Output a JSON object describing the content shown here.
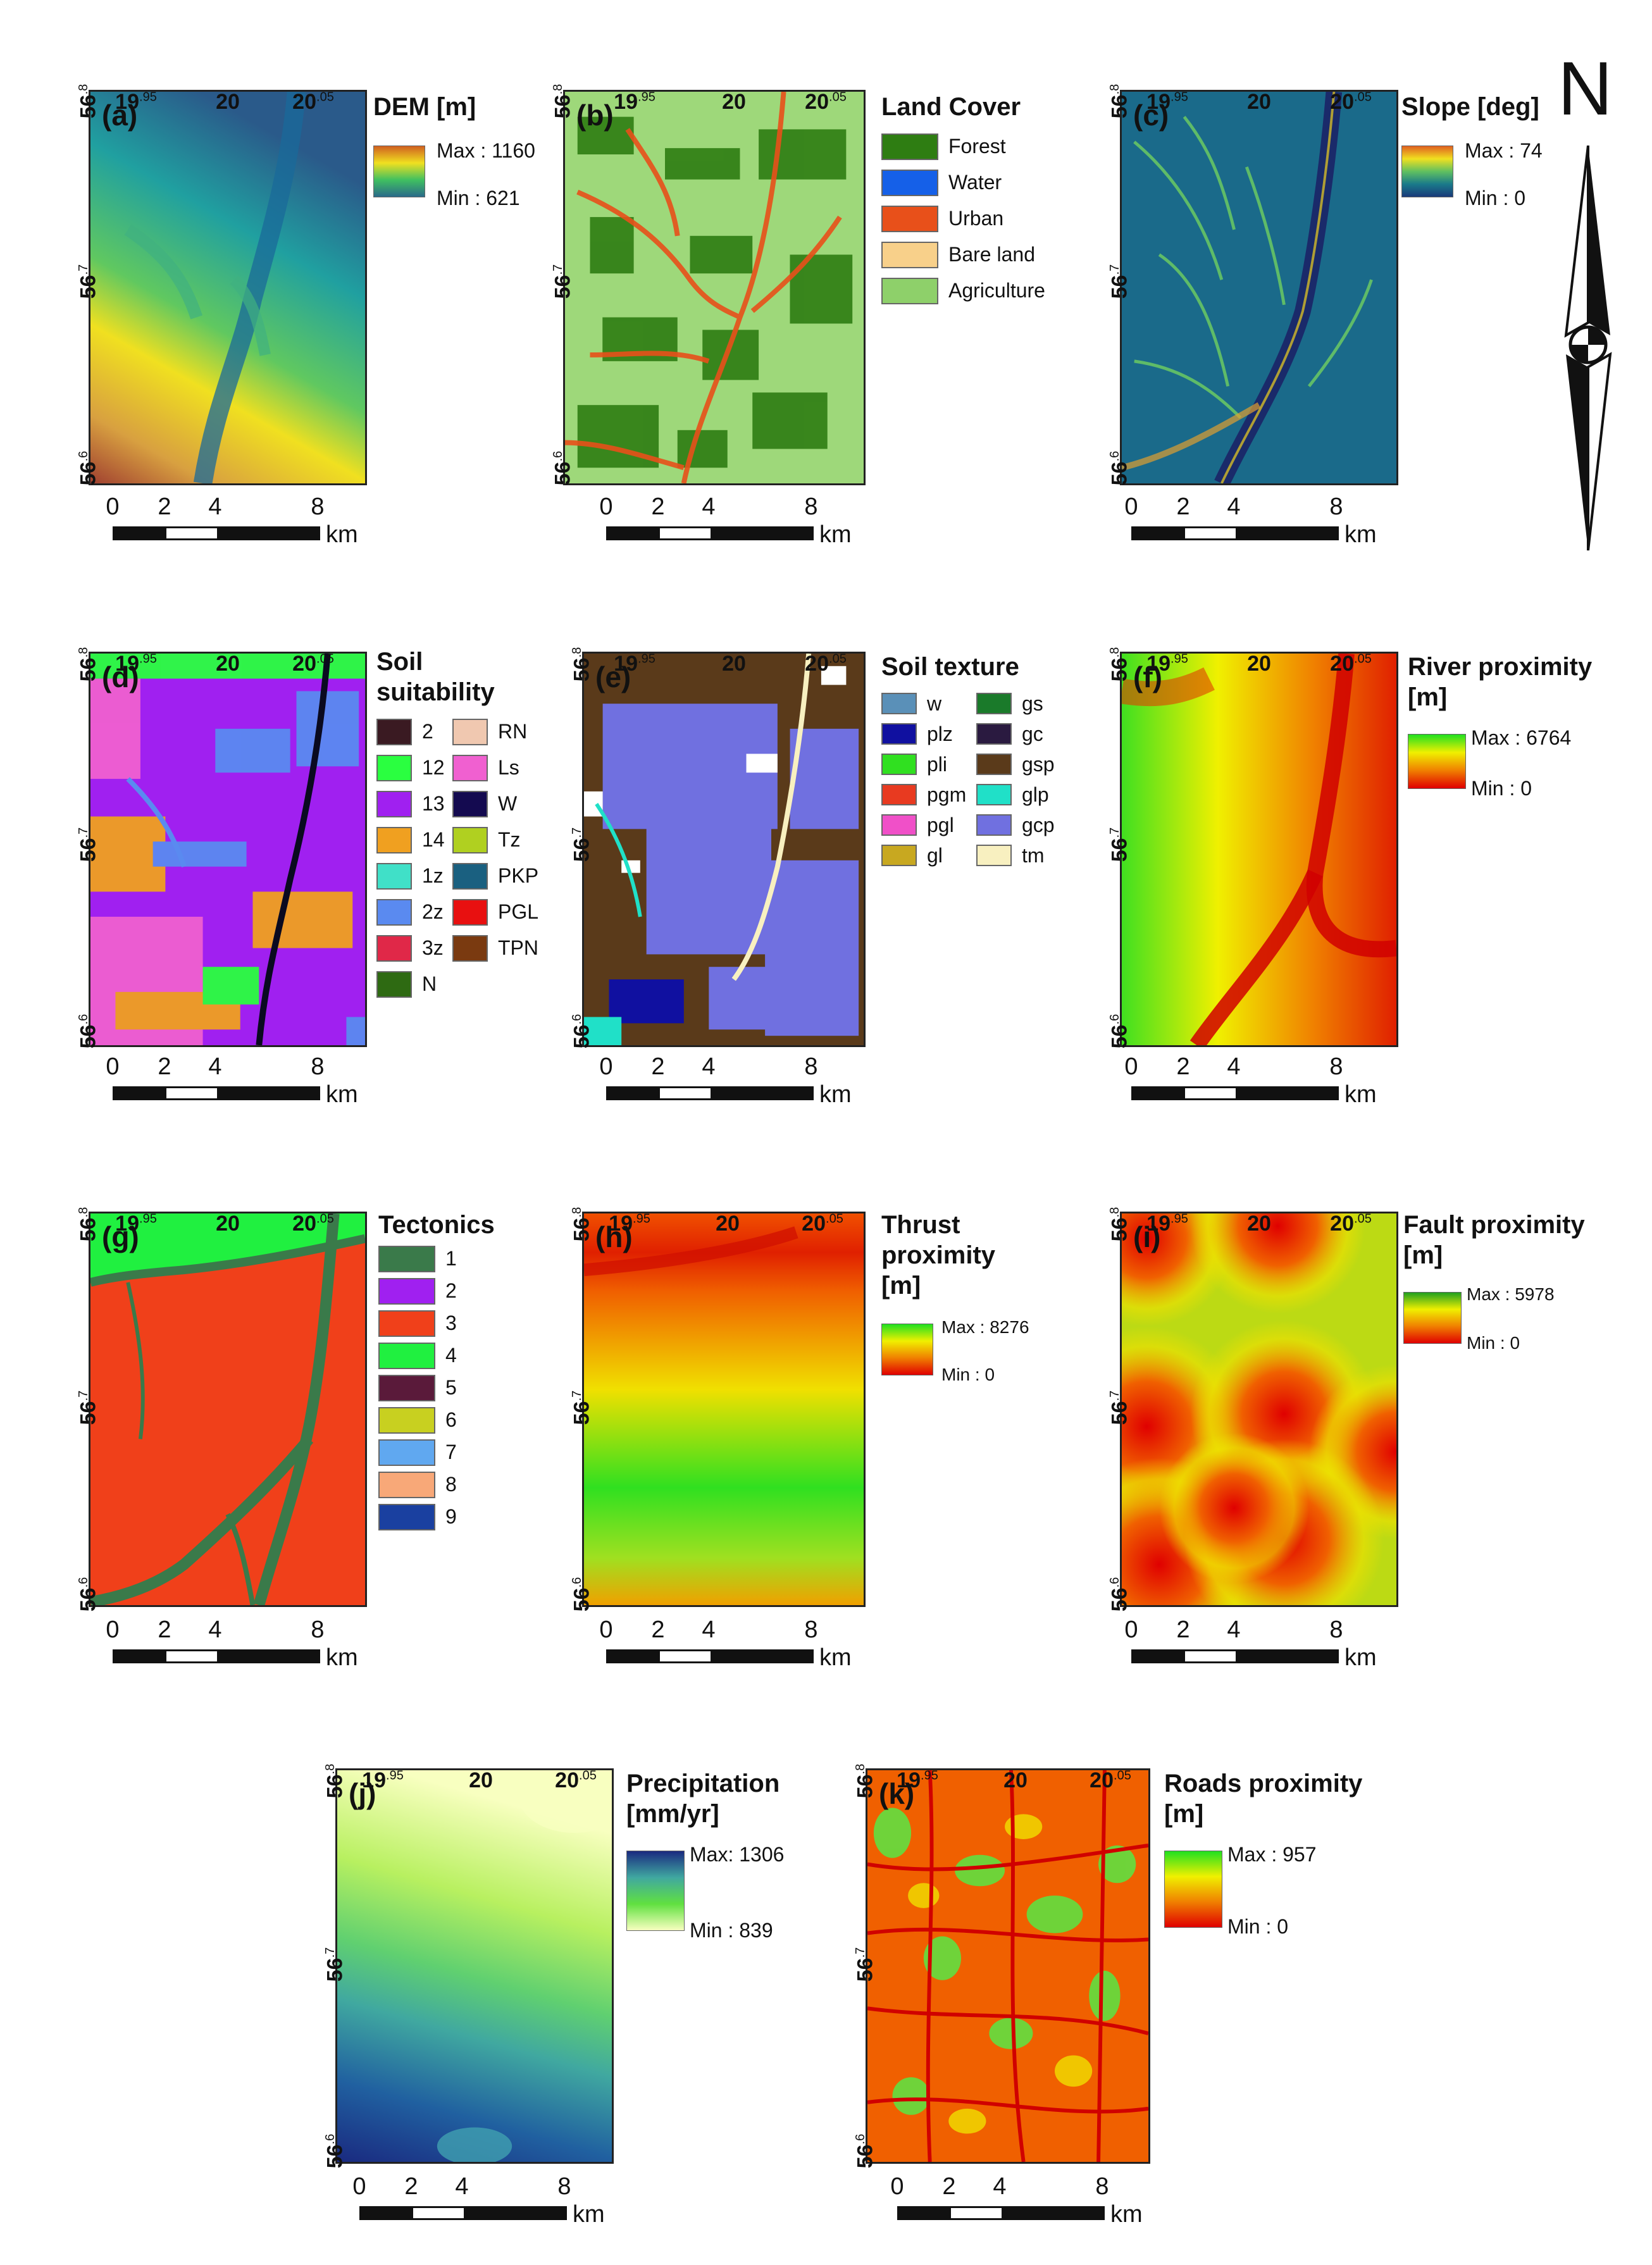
{
  "ticks": {
    "lon": [
      "19",
      "20",
      "20"
    ],
    "lon_sup": [
      ".95",
      "",
      ".05"
    ],
    "lat": [
      "56",
      "56",
      "56"
    ],
    "lat_sup": [
      ".8",
      ".7",
      ".6"
    ]
  },
  "scale": {
    "labels": [
      "0",
      "2",
      "4",
      "8"
    ],
    "unit": "km"
  },
  "north_label": "N",
  "panels": {
    "a": {
      "letter": "(a)",
      "title": "DEM [m]",
      "max": "Max : 1160",
      "min": "Min : 621"
    },
    "b": {
      "letter": "(b)",
      "title": "Land Cover",
      "items": [
        {
          "label": "Forest",
          "color": "#2e7d12"
        },
        {
          "label": "Water",
          "color": "#1560e8"
        },
        {
          "label": "Urban",
          "color": "#e8501a"
        },
        {
          "label": "Bare land",
          "color": "#f8d08a"
        },
        {
          "label": "Agriculture",
          "color": "#8ed06a"
        }
      ]
    },
    "c": {
      "letter": "(c)",
      "title": "Slope [deg]",
      "max": "Max : 74",
      "min": "Min : 0"
    },
    "d": {
      "letter": "(d)",
      "title_line1": "Soil",
      "title_line2": "suitability",
      "col1": [
        {
          "label": "2",
          "color": "#3a1a22"
        },
        {
          "label": "12",
          "color": "#2aff40"
        },
        {
          "label": "13",
          "color": "#a020f0"
        },
        {
          "label": "14",
          "color": "#f0a020"
        },
        {
          "label": "1z",
          "color": "#40e0c8"
        },
        {
          "label": "2z",
          "color": "#5a8af0"
        },
        {
          "label": "3z",
          "color": "#e02848"
        },
        {
          "label": "N",
          "color": "#2e6a12"
        }
      ],
      "col2": [
        {
          "label": "RN",
          "color": "#f0c8b0"
        },
        {
          "label": "Ls",
          "color": "#f060d0"
        },
        {
          "label": "W",
          "color": "#140a50"
        },
        {
          "label": "Tz",
          "color": "#b0d020"
        },
        {
          "label": "PKP",
          "color": "#1a6080"
        },
        {
          "label": "PGL",
          "color": "#e81010"
        },
        {
          "label": "TPN",
          "color": "#7a3a10"
        }
      ]
    },
    "e": {
      "letter": "(e)",
      "title": "Soil texture",
      "col1": [
        {
          "label": "w",
          "color": "#5a90b8"
        },
        {
          "label": "plz",
          "color": "#1010a0"
        },
        {
          "label": "pli",
          "color": "#30e020"
        },
        {
          "label": "pgm",
          "color": "#e83a20"
        },
        {
          "label": "pgl",
          "color": "#f050c8"
        },
        {
          "label": "gl",
          "color": "#c8a820"
        }
      ],
      "col2": [
        {
          "label": "gs",
          "color": "#1a7a2a"
        },
        {
          "label": "gc",
          "color": "#2a1a40"
        },
        {
          "label": "gsp",
          "color": "#5a3a1a"
        },
        {
          "label": "glp",
          "color": "#20e0c8"
        },
        {
          "label": "gcp",
          "color": "#7070e0"
        },
        {
          "label": "tm",
          "color": "#f8f0c0"
        }
      ]
    },
    "f": {
      "letter": "(f)",
      "title_line1": "River proximity",
      "title_line2": "[m]",
      "max": "Max : 6764",
      "min": "Min : 0"
    },
    "g": {
      "letter": "(g)",
      "title": "Tectonics",
      "items": [
        {
          "label": "1",
          "color": "#3a7a4a"
        },
        {
          "label": "2",
          "color": "#a020f0"
        },
        {
          "label": "3",
          "color": "#f0401a"
        },
        {
          "label": "4",
          "color": "#20f040"
        },
        {
          "label": "5",
          "color": "#5a1a3a"
        },
        {
          "label": "6",
          "color": "#c8d020"
        },
        {
          "label": "7",
          "color": "#60a8f0"
        },
        {
          "label": "8",
          "color": "#f8a878"
        },
        {
          "label": "9",
          "color": "#1a40a0"
        }
      ]
    },
    "h": {
      "letter": "(h)",
      "title_line1": "Thrust",
      "title_line2": "proximity",
      "title_line3": "[m]",
      "max": "Max : 8276",
      "min": "Min : 0"
    },
    "i": {
      "letter": "(i)",
      "title_line1": "Fault proximity",
      "title_line2": "[m]",
      "max": "Max : 5978",
      "min": "Min : 0"
    },
    "j": {
      "letter": "(j)",
      "title_line1": "Precipitation",
      "title_line2": "[mm/yr]",
      "max": "Max: 1306",
      "min": "Min : 839"
    },
    "k": {
      "letter": "(k)",
      "title_line1": "Roads proximity",
      "title_line2": "[m]",
      "max": "Max : 957",
      "min": "Min : 0"
    }
  },
  "colors": {
    "dem": [
      "#2a6a8a",
      "#20a0a0",
      "#40c060",
      "#b0e040",
      "#f0e020",
      "#d08020",
      "#a04030"
    ],
    "slope": [
      "#1a3a7a",
      "#1a7a8a",
      "#60c060",
      "#f0e020",
      "#e06020"
    ],
    "red_green": [
      "#e00000",
      "#f08000",
      "#f0f000",
      "#20e020"
    ],
    "precip": [
      "#f8ffc0",
      "#80e060",
      "#40b0a0",
      "#1a3a8a"
    ]
  }
}
